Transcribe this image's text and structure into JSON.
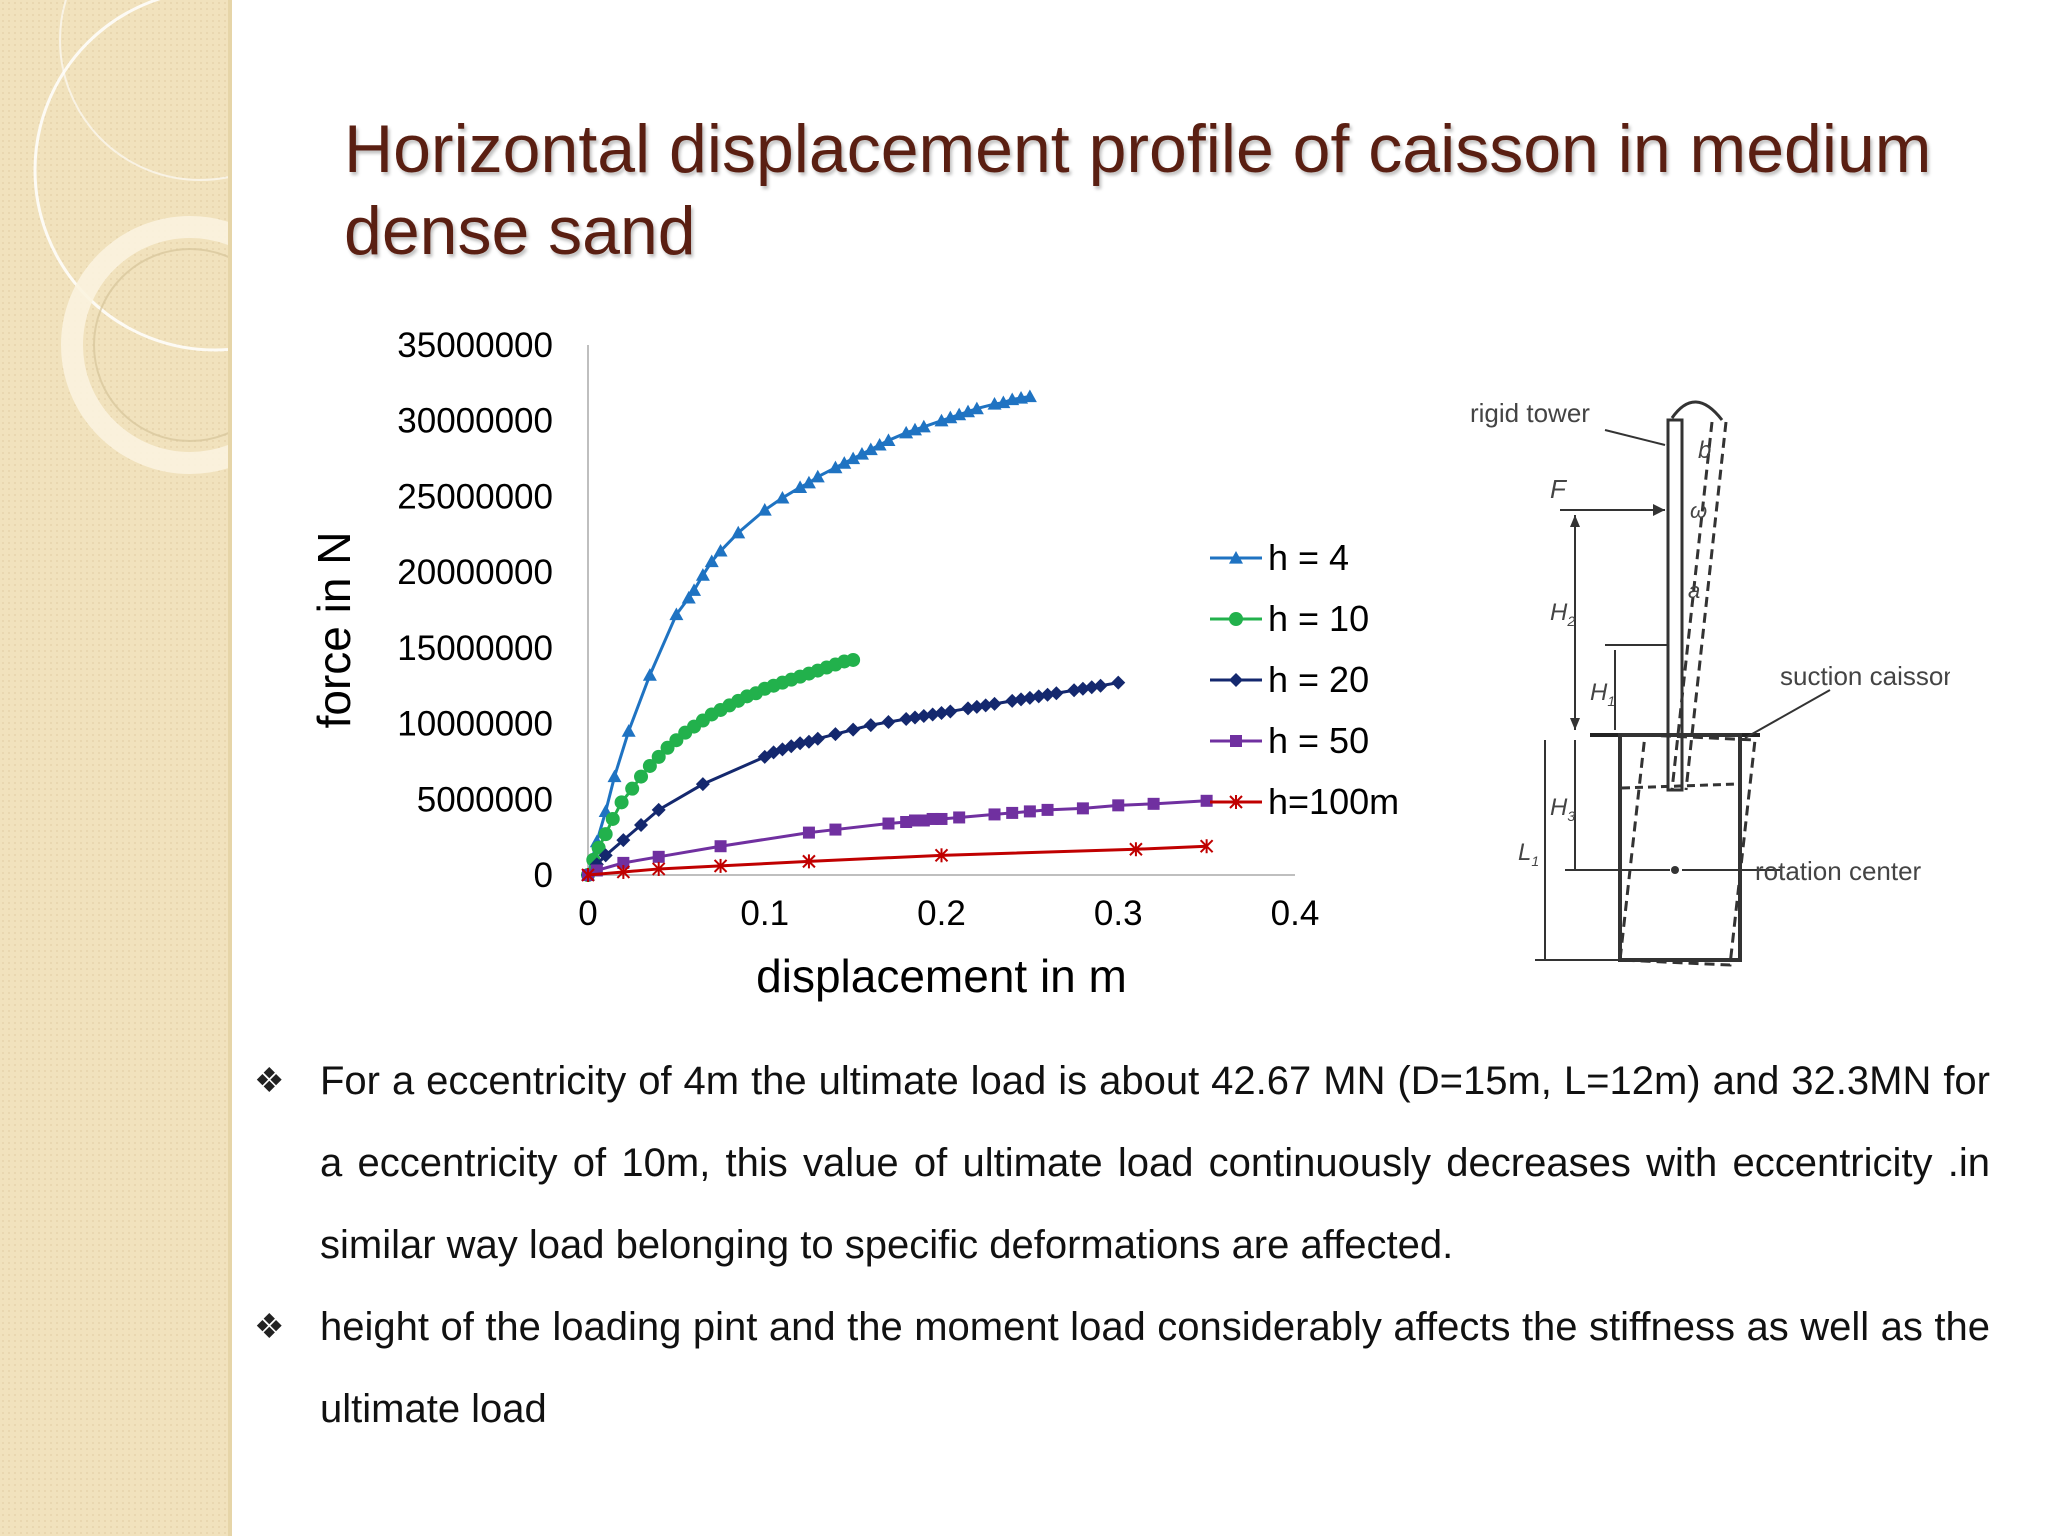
{
  "slide": {
    "title": "Horizontal displacement profile of caisson in medium dense sand"
  },
  "colors": {
    "title": "#5a1f12",
    "sidebar_bg": "#f1e2bd",
    "series": [
      "#1f73c2",
      "#22b14c",
      "#14286e",
      "#7030a0",
      "#c00000"
    ]
  },
  "chart_data": {
    "type": "line",
    "title": "",
    "xlabel": "displacement in m",
    "ylabel": "force in N",
    "xlim": [
      0,
      0.4
    ],
    "ylim": [
      0,
      35000000
    ],
    "x_ticks": [
      "0",
      "0.1",
      "0.2",
      "0.3",
      "0.4"
    ],
    "y_ticks": [
      "0",
      "5000000",
      "10000000",
      "15000000",
      "20000000",
      "25000000",
      "30000000",
      "35000000"
    ],
    "grid": false,
    "legend_position": "right",
    "series": [
      {
        "name": "h = 4",
        "marker": "triangle",
        "x": [
          0,
          0.005,
          0.01,
          0.015,
          0.023,
          0.035,
          0.05,
          0.057,
          0.06,
          0.065,
          0.07,
          0.075,
          0.085,
          0.1,
          0.11,
          0.12,
          0.125,
          0.13,
          0.14,
          0.145,
          0.15,
          0.155,
          0.16,
          0.165,
          0.17,
          0.18,
          0.185,
          0.19,
          0.2,
          0.205,
          0.21,
          0.215,
          0.22,
          0.23,
          0.235,
          0.24,
          0.245,
          0.25
        ],
        "y": [
          0,
          2200000,
          4200000,
          6500000,
          9500000,
          13200000,
          17200000,
          18300000,
          18800000,
          19800000,
          20700000,
          21400000,
          22600000,
          24100000,
          24900000,
          25600000,
          25900000,
          26300000,
          26900000,
          27200000,
          27500000,
          27800000,
          28100000,
          28400000,
          28700000,
          29200000,
          29400000,
          29600000,
          30000000,
          30200000,
          30400000,
          30600000,
          30800000,
          31100000,
          31200000,
          31400000,
          31500000,
          31600000
        ]
      },
      {
        "name": "h = 10",
        "marker": "circle",
        "x": [
          0,
          0.003,
          0.006,
          0.01,
          0.014,
          0.019,
          0.025,
          0.03,
          0.035,
          0.04,
          0.045,
          0.05,
          0.055,
          0.06,
          0.065,
          0.07,
          0.075,
          0.08,
          0.085,
          0.09,
          0.095,
          0.1,
          0.105,
          0.11,
          0.115,
          0.12,
          0.125,
          0.13,
          0.135,
          0.14,
          0.145,
          0.15
        ],
        "y": [
          0,
          1000000,
          1800000,
          2700000,
          3700000,
          4800000,
          5700000,
          6500000,
          7200000,
          7800000,
          8400000,
          8900000,
          9400000,
          9800000,
          10200000,
          10600000,
          10900000,
          11200000,
          11500000,
          11800000,
          12000000,
          12300000,
          12500000,
          12700000,
          12900000,
          13100000,
          13300000,
          13500000,
          13700000,
          13900000,
          14100000,
          14200000
        ]
      },
      {
        "name": "h = 20",
        "marker": "diamond",
        "x": [
          0,
          0.005,
          0.01,
          0.02,
          0.03,
          0.04,
          0.065,
          0.1,
          0.105,
          0.11,
          0.115,
          0.12,
          0.125,
          0.13,
          0.14,
          0.15,
          0.16,
          0.17,
          0.18,
          0.185,
          0.19,
          0.195,
          0.2,
          0.205,
          0.215,
          0.22,
          0.225,
          0.23,
          0.24,
          0.245,
          0.25,
          0.255,
          0.26,
          0.265,
          0.275,
          0.28,
          0.285,
          0.29,
          0.3
        ],
        "y": [
          0,
          700000,
          1300000,
          2300000,
          3300000,
          4300000,
          6000000,
          7800000,
          8100000,
          8300000,
          8500000,
          8700000,
          8800000,
          9000000,
          9300000,
          9600000,
          9900000,
          10100000,
          10300000,
          10400000,
          10500000,
          10600000,
          10700000,
          10800000,
          11000000,
          11100000,
          11200000,
          11300000,
          11500000,
          11600000,
          11700000,
          11800000,
          11900000,
          12000000,
          12200000,
          12300000,
          12400000,
          12500000,
          12700000
        ]
      },
      {
        "name": "h = 50",
        "marker": "square",
        "x": [
          0,
          0.005,
          0.02,
          0.04,
          0.075,
          0.125,
          0.14,
          0.17,
          0.18,
          0.185,
          0.19,
          0.195,
          0.2,
          0.21,
          0.23,
          0.24,
          0.25,
          0.26,
          0.28,
          0.3,
          0.32,
          0.35
        ],
        "y": [
          0,
          300000,
          800000,
          1200000,
          1900000,
          2800000,
          3000000,
          3400000,
          3500000,
          3600000,
          3600000,
          3700000,
          3700000,
          3800000,
          4000000,
          4100000,
          4200000,
          4300000,
          4400000,
          4600000,
          4700000,
          4900000
        ]
      },
      {
        "name": "h=100m",
        "marker": "star",
        "x": [
          0,
          0.02,
          0.04,
          0.075,
          0.125,
          0.2,
          0.31,
          0.35
        ],
        "y": [
          0,
          200000,
          400000,
          600000,
          900000,
          1300000,
          1700000,
          1900000
        ]
      }
    ]
  },
  "diagram": {
    "labels": {
      "rigid_tower": "rigid tower",
      "suction_caisson": "suction caisson",
      "rotation_center": "rotation center",
      "F": "F",
      "b": "b",
      "omega": "ω",
      "a": "a",
      "H2": "H",
      "H2_sub": "2",
      "H1": "H",
      "H1_sub": "1",
      "H3": "H",
      "H3_sub": "3",
      "L1": "L",
      "L1_sub": "1"
    }
  },
  "bullets": [
    "For a eccentricity of 4m the ultimate load is about 42.67 MN (D=15m, L=12m) and 32.3MN for a eccentricity of 10m, this value of ultimate load continuously decreases with eccentricity .in similar way load belonging to specific deformations are affected.",
    "height of the loading pint and the moment load considerably affects the stiffness as well as the ultimate load"
  ],
  "bullet_icon": "❖"
}
